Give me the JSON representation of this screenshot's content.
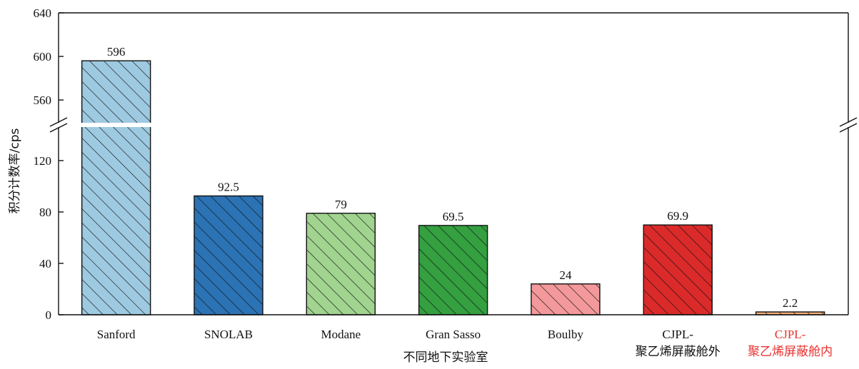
{
  "chart_data": {
    "type": "bar",
    "xlabel": "不同地下实验室",
    "ylabel": "积分计数率/cps",
    "categories": [
      [
        "Sanford"
      ],
      [
        "SNOLAB"
      ],
      [
        "Modane"
      ],
      [
        "Gran Sasso"
      ],
      [
        "Boulby"
      ],
      [
        "CJPL-",
        "聚乙烯屏蔽舱外"
      ],
      [
        "CJPL-",
        "聚乙烯屏蔽舱内"
      ]
    ],
    "values": [
      596,
      92.5,
      79,
      69.5,
      24,
      69.9,
      2.2
    ],
    "value_labels": [
      "596",
      "92.5",
      "79",
      "69.5",
      "24",
      "69.9",
      "2.2"
    ],
    "colors": [
      "#9ecae1",
      "#2b73b4",
      "#a1d48f",
      "#34a040",
      "#f4999b",
      "#db2a2a",
      "#f4b07a"
    ],
    "category_label_colors": [
      "#111111",
      "#111111",
      "#111111",
      "#111111",
      "#111111",
      "#111111",
      "#e8312f"
    ],
    "hatch": "diagonal",
    "axis_break": true,
    "ylim_lower": [
      0,
      145
    ],
    "ylim_upper": [
      545,
      640
    ],
    "yticks_lower": [
      0,
      40,
      80,
      120
    ],
    "yticks_upper": [
      560,
      600,
      640
    ],
    "grid": false,
    "legend": "none"
  }
}
